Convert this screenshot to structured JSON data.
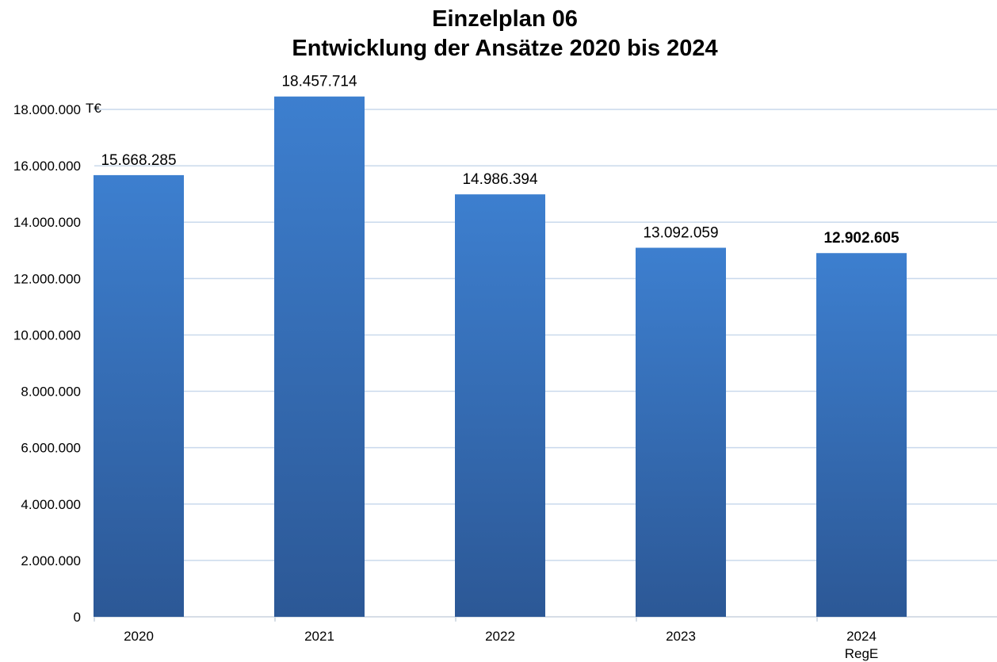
{
  "chart_data": {
    "type": "bar",
    "title": "Einzelplan 06",
    "subtitle": "Entwicklung der Ansätze 2020 bis 2024",
    "categories": [
      "2020",
      "2021",
      "2022",
      "2023",
      "2024"
    ],
    "category_sublabels": [
      "",
      "",
      "",
      "",
      "RegE"
    ],
    "values": [
      15668285,
      18457714,
      14986394,
      13092059,
      12902605
    ],
    "value_labels": [
      "15.668.285",
      "18.457.714",
      "14.986.394",
      "13.092.059",
      "12.902.605"
    ],
    "bold_labels": [
      false,
      false,
      false,
      false,
      true
    ],
    "unit": "T€",
    "ylim": [
      0,
      18000000
    ],
    "yticks": [
      0,
      2000000,
      4000000,
      6000000,
      8000000,
      10000000,
      12000000,
      14000000,
      16000000,
      18000000
    ],
    "ytick_labels": [
      "0",
      "2.000.000",
      "4.000.000",
      "6.000.000",
      "8.000.000",
      "10.000.000",
      "12.000.000",
      "14.000.000",
      "16.000.000",
      "18.000.000"
    ],
    "grid": true,
    "legend": "none",
    "colors": {
      "bar_top": "#3D7FCF",
      "bar_bottom": "#2C5896",
      "grid": "#C9D9EC",
      "axis": "#C9D2DE"
    }
  }
}
